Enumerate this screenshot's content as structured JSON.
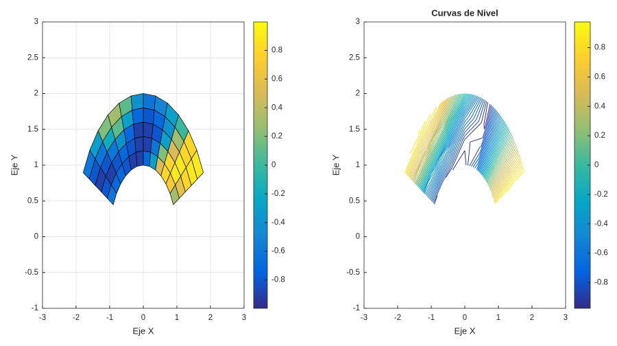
{
  "chart_data": [
    {
      "type": "surface",
      "xlabel": "Eje X",
      "ylabel": "Eje Y",
      "xlim": [
        -3,
        3
      ],
      "xticks": [
        -3,
        -2,
        -1,
        0,
        1,
        2,
        3
      ],
      "ylim": [
        -1,
        3
      ],
      "yticks": [
        -1,
        -0.5,
        0,
        0.5,
        1,
        1.5,
        2,
        2.5,
        3
      ],
      "grid": true,
      "colormap": "parula",
      "clim": [
        -0.998,
        0.998
      ],
      "cticks": [
        -0.8,
        -0.6,
        -0.4,
        -0.2,
        0,
        0.2,
        0.4,
        0.6,
        0.8
      ],
      "r": [
        1,
        1.2,
        1.4,
        1.6,
        1.8,
        2
      ],
      "theta": [
        153.4,
        142.8,
        132.3,
        121.7,
        111.1,
        100.5,
        90,
        79.5,
        68.9,
        58.3,
        47.7,
        37.2,
        26.6
      ],
      "z": [
        [
          -0.6,
          -0.7,
          -0.7,
          -0.8,
          -0.9,
          -0.9,
          -0.7,
          -0.3,
          0.5,
          0.8,
          0.7,
          0.3
        ],
        [
          -0.8,
          -0.9,
          -0.8,
          -0.7,
          -0.8,
          -0.9,
          -0.9,
          -0.6,
          0.2,
          0.8,
          0.9,
          0.6
        ],
        [
          -0.9,
          -0.8,
          -0.6,
          -0.4,
          -0.7,
          -0.9,
          -0.9,
          -0.8,
          -0.3,
          0.5,
          0.9,
          0.8
        ],
        [
          -0.8,
          -0.6,
          -0.2,
          0.1,
          -0.3,
          -0.7,
          -0.8,
          -0.7,
          -0.4,
          0.3,
          0.8,
          0.9
        ],
        [
          -0.6,
          -0.3,
          0.2,
          0.3,
          0.1,
          -0.4,
          -0.6,
          -0.5,
          -0.3,
          0.0,
          0.8,
          0.9
        ]
      ]
    },
    {
      "type": "contour",
      "title": "Curvas de Nivel",
      "xlabel": "Eje X",
      "ylabel": "Eje Y",
      "xlim": [
        -3,
        3
      ],
      "xticks": [
        -3,
        -2,
        -1,
        0,
        1,
        2,
        3
      ],
      "ylim": [
        -1,
        3
      ],
      "yticks": [
        -1,
        -0.5,
        0,
        0.5,
        1,
        1.5,
        2,
        2.5,
        3
      ],
      "grid": false,
      "colormap": "parula",
      "clim": [
        -0.975,
        0.975
      ],
      "levels": 40,
      "cticks": [
        -0.8,
        -0.6,
        -0.4,
        -0.2,
        0,
        0.2,
        0.4,
        0.6,
        0.8
      ],
      "r": [
        1,
        1.333,
        1.667,
        2
      ],
      "theta": [
        153.4,
        132.3,
        111.1,
        90,
        68.9,
        47.7,
        26.6
      ],
      "z": [
        [
          -0.923,
          -0.871,
          -0.951,
          -0.986,
          -0.643,
          0.137,
          0.833
        ],
        [
          -0.424,
          -0.277,
          -0.518,
          -0.928,
          -0.848,
          0.1,
          0.943
        ],
        [
          0.295,
          0.477,
          0.166,
          -0.596,
          -0.971,
          0.063,
          0.996
        ],
        [
          0.862,
          0.957,
          0.77,
          -0.088,
          -0.997,
          0.026,
          0.988
        ]
      ]
    }
  ]
}
